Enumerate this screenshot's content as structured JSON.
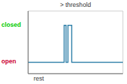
{
  "chart_data": {
    "type": "line",
    "title": "> threshold",
    "x_label": "rest",
    "annotations": [
      {
        "text": "closed",
        "color": "#00cc00"
      },
      {
        "text": "open",
        "color": "#cc0033"
      }
    ],
    "x": [
      0,
      38,
      38,
      40,
      40,
      42,
      42,
      46,
      46,
      52,
      52,
      100
    ],
    "values": [
      2.0,
      2.0,
      8.5,
      8.5,
      2.0,
      2.0,
      8.5,
      8.5,
      2.0,
      2.0,
      2.0,
      2.0
    ],
    "color": "#2e7fa8",
    "xlim": [
      0,
      100
    ],
    "ylim": [
      0,
      11
    ],
    "xticks": [
      0,
      12.5,
      25,
      37.5,
      50,
      62.5,
      75,
      87.5,
      100
    ],
    "yticks": [
      0,
      2.75,
      5.5,
      8.25,
      11
    ],
    "grid": true,
    "tick_labels": false
  }
}
